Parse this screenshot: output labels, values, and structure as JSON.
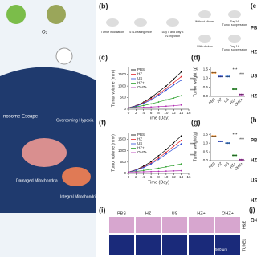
{
  "illustration": {
    "labels": [
      "O₂",
      "nosome Escape",
      "Overcoming Hypoxia",
      "Damaged Mitochondria",
      "Integral Mitochondria"
    ]
  },
  "schematic": {
    "label": "(b)",
    "steps": [
      "Tumor inoculation",
      "4T1-bearing mice",
      "Day 5 and Day 3",
      "i.v. injection",
      "Without clicken",
      "With clicken",
      "Day14",
      "Tumor suppression",
      "Day 14",
      "Tumor suppression"
    ]
  },
  "chart_data": [
    {
      "label": "(c)",
      "type": "line",
      "x_label": "Time (Day)",
      "y_label": "Tumor volume (mm³)",
      "xlim": [
        0,
        16
      ],
      "xticks": [
        0,
        2,
        4,
        6,
        8,
        10,
        12,
        14,
        16
      ],
      "ylim": [
        0,
        1800
      ],
      "yticks": [
        0,
        500,
        1000,
        1500
      ],
      "x": [
        0,
        2,
        4,
        6,
        8,
        10,
        12,
        14
      ],
      "annotations": [
        "***",
        "***"
      ],
      "series": [
        {
          "name": "PBS",
          "color": "#000000",
          "values": [
            60,
            150,
            300,
            500,
            750,
            1000,
            1300,
            1600
          ]
        },
        {
          "name": "HZ",
          "color": "#e3262b",
          "values": [
            60,
            140,
            270,
            450,
            650,
            900,
            1150,
            1400
          ]
        },
        {
          "name": "US",
          "color": "#2a4bd7",
          "values": [
            60,
            130,
            250,
            400,
            600,
            820,
            1050,
            1250
          ]
        },
        {
          "name": "HZ+",
          "color": "#2ca02c",
          "values": [
            60,
            100,
            160,
            230,
            310,
            400,
            480,
            580
          ]
        },
        {
          "name": "OHZ+",
          "color": "#b02ab0",
          "values": [
            60,
            70,
            80,
            95,
            110,
            130,
            150,
            180
          ]
        }
      ]
    },
    {
      "label": "(d)",
      "type": "scatter",
      "y_label": "Tumor weight (g)",
      "categories": [
        "PBS",
        "HZ",
        "US",
        "HZ+",
        "OHZ+"
      ],
      "colors": [
        "#f08a24",
        "#2a4bd7",
        "#3a7bd5",
        "#2ca02c",
        "#b02ab0"
      ],
      "values": [
        1.3,
        1.1,
        1.1,
        0.4,
        0.1
      ],
      "ylim": [
        0,
        1.6
      ],
      "yticks": [
        {
          "value": 0,
          "label": "0.0"
        },
        {
          "value": 0.5,
          "label": "0.5"
        },
        {
          "value": 1,
          "label": "1.0"
        },
        {
          "value": 1.5,
          "label": "1.5"
        }
      ],
      "annotations": [
        "***",
        "***"
      ]
    },
    {
      "label": "(f)",
      "type": "line",
      "x_label": "Time (Day)",
      "y_label": "Tumor volume (mm³)",
      "xlim": [
        0,
        16
      ],
      "xticks": [
        0,
        2,
        4,
        6,
        8,
        10,
        12,
        14,
        16
      ],
      "ylim": [
        0,
        1800
      ],
      "yticks": [
        0,
        500,
        1000,
        1500
      ],
      "x": [
        0,
        2,
        4,
        6,
        8,
        10,
        12,
        14
      ],
      "annotations": [
        "***",
        "***"
      ],
      "series": [
        {
          "name": "PBS",
          "color": "#000000",
          "values": [
            60,
            160,
            320,
            520,
            780,
            1050,
            1350,
            1650
          ]
        },
        {
          "name": "HZ",
          "color": "#e3262b",
          "values": [
            60,
            150,
            280,
            460,
            680,
            930,
            1200,
            1450
          ]
        },
        {
          "name": "US",
          "color": "#2a4bd7",
          "values": [
            60,
            140,
            260,
            420,
            620,
            850,
            1080,
            1300
          ]
        },
        {
          "name": "HZ+",
          "color": "#2ca02c",
          "values": [
            60,
            90,
            130,
            180,
            230,
            290,
            350,
            420
          ]
        },
        {
          "name": "OHZ+",
          "color": "#b02ab0",
          "values": [
            60,
            65,
            70,
            80,
            90,
            100,
            110,
            120
          ]
        }
      ]
    },
    {
      "label": "(g)",
      "type": "scatter",
      "y_label": "Tumor weight (g)",
      "categories": [
        "PBS",
        "HZ",
        "US",
        "HZ+",
        "OHZ+"
      ],
      "colors": [
        "#f08a24",
        "#2a4bd7",
        "#3a7bd5",
        "#2ca02c",
        "#b02ab0"
      ],
      "values": [
        1.4,
        1.1,
        1.0,
        0.3,
        0.05
      ],
      "ylim": [
        0,
        1.6
      ],
      "yticks": [
        {
          "value": 0,
          "label": "0.0"
        },
        {
          "value": 0.5,
          "label": "0.5"
        },
        {
          "value": 1,
          "label": "1.0"
        },
        {
          "value": 1.5,
          "label": "1.5"
        }
      ],
      "annotations": [
        "***",
        "***"
      ]
    }
  ],
  "histology": {
    "label": "(i)",
    "columns": [
      "PBS",
      "HZ",
      "US",
      "HZ+",
      "OHZ+"
    ],
    "rows": [
      "H&E",
      "TUNEL"
    ],
    "scale": "500 μm"
  },
  "right_edge": {
    "labels": [
      "(e",
      "PBS",
      "HZ",
      "US",
      "HZ+",
      "(h",
      "PBS",
      "HZ",
      "US",
      "HZ+",
      "OHZ+",
      "(j)"
    ]
  }
}
